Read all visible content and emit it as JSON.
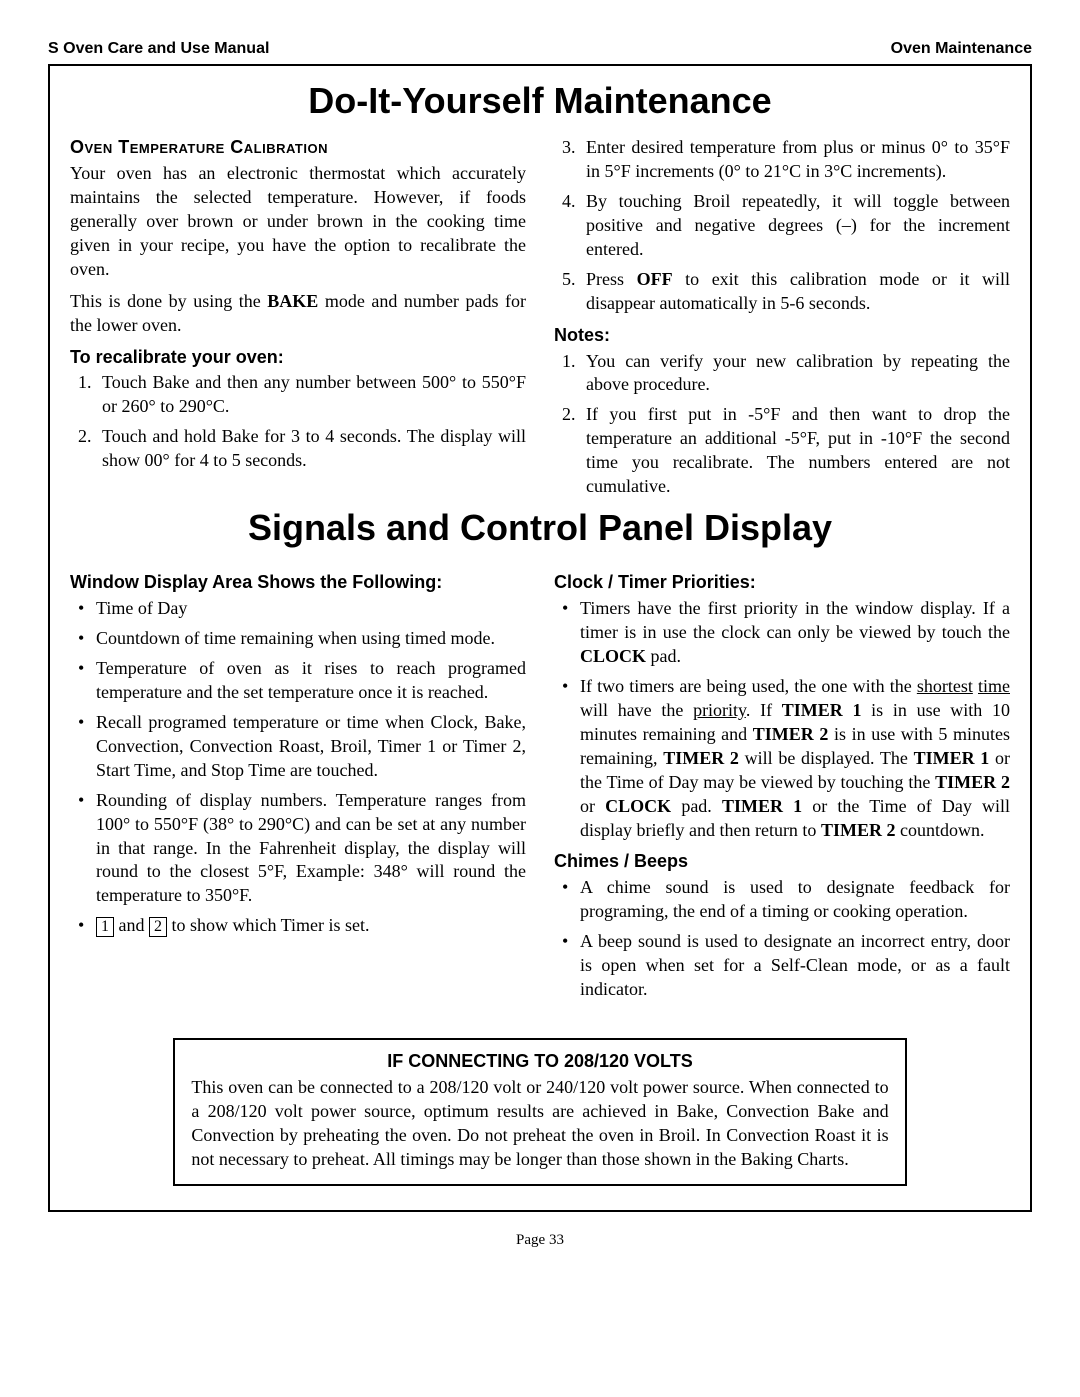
{
  "header": {
    "left": "S Oven Care and Use Manual",
    "right": "Oven Maintenance"
  },
  "title1": "Do-It-Yourself Maintenance",
  "s1": {
    "head": "Oven Temperature Calibration",
    "p1": "Your oven has an electronic thermostat which accurately maintains the selected temperature. However, if foods generally over brown or under brown in the cooking time given in your recipe, you have the option to recalibrate the oven.",
    "p2a": "This is done by using the ",
    "p2b": "BAKE",
    "p2c": " mode and number pads for the lower oven.",
    "sub": "To recalibrate your oven:",
    "li1": "Touch Bake and then any number between 500° to 550°F or 260° to 290°C.",
    "li2": "Touch and hold Bake for 3 to 4 seconds. The display will show 00° for 4 to 5 seconds.",
    "li3": "Enter desired temperature from plus or minus 0° to 35°F in 5°F increments (0° to 21°C in 3°C increments).",
    "li4": "By touching Broil repeatedly, it will toggle between positive and negative degrees (–) for the increment entered.",
    "li5a": "Press ",
    "li5b": "OFF",
    "li5c": " to exit this calibration mode or it will disappear automatically in 5-6 seconds.",
    "notes_head": "Notes:",
    "n1": "You can verify your new calibration by repeating the above procedure.",
    "n2": "If you first put in -5°F and then want to drop the temperature an additional -5°F, put in -10°F the second time you recalibrate. The numbers entered are not cumulative."
  },
  "title2": "Signals and Control Panel Display",
  "s2": {
    "head_l": "Window Display Area Shows the Following:",
    "li1": "Time of Day",
    "li2": "Countdown of time remaining when using timed mode.",
    "li3": "Temperature of oven as it rises to reach programed temperature and the set temperature once it is reached.",
    "li4": "Recall programed temperature or time when Clock, Bake, Convection, Convection Roast, Broil, Timer 1 or Timer 2, Start Time, and Stop Time are touched.",
    "li5": "Rounding of display numbers. Temperature ranges from 100° to 550°F (38° to 290°C) and can be set at any number in that range. In the Fahrenheit display, the display will round to the closest 5°F, Example: 348° will round the temperature to 350°F.",
    "li6_n1": "1",
    "li6_mid": " and ",
    "li6_n2": "2",
    "li6_end": " to show which Timer is set.",
    "head_r1": "Clock / Timer Priorities:",
    "r_li1a": "Timers have the first priority in the window display. If a timer is in use the clock can only be viewed by touch the ",
    "r_li1b": "CLOCK",
    "r_li1c": " pad.",
    "r_li2a": "If two timers are being used, the one with the ",
    "r_li2b": "shortest",
    "r_li2c": " ",
    "r_li2d": "time",
    "r_li2e": " will have the ",
    "r_li2f": "priority",
    "r_li2g": ". If ",
    "r_li2h": "TIMER 1",
    "r_li2i": " is in use with 10 minutes remaining and ",
    "r_li2j": "TIMER 2",
    "r_li2k": " is in use with 5 minutes remaining, ",
    "r_li2l": "TIMER 2",
    "r_li2m": " will be displayed. The ",
    "r_li2n": "TIMER 1",
    "r_li2o": " or the Time of Day may be viewed by touching the ",
    "r_li2p": "TIMER 2",
    "r_li2q": " or ",
    "r_li2r": "CLOCK",
    "r_li2s": " pad. ",
    "r_li2t": "TIMER 1",
    "r_li2u": " or the Time of Day will display briefly and then return to ",
    "r_li2v": "TIMER 2",
    "r_li2w": " countdown.",
    "head_r2": "Chimes / Beeps",
    "c_li1": "A chime sound is used to designate feedback for programing, the end of a timing or cooking operation.",
    "c_li2": "A beep sound is used to designate an incorrect entry, door is open when set for a Self-Clean mode, or as a fault indicator."
  },
  "callout": {
    "title": "IF CONNECTING TO 208/120 VOLTS",
    "body": "This oven can be connected to a 208/120 volt or 240/120 volt power source. When connected to a 208/120 volt power source, optimum results are achieved in Bake, Convection Bake and Convection by preheating the oven. Do not preheat the oven in Broil. In Convection Roast it is not necessary to preheat. All timings may be longer than those shown in the Baking Charts."
  },
  "footer": "Page 33"
}
